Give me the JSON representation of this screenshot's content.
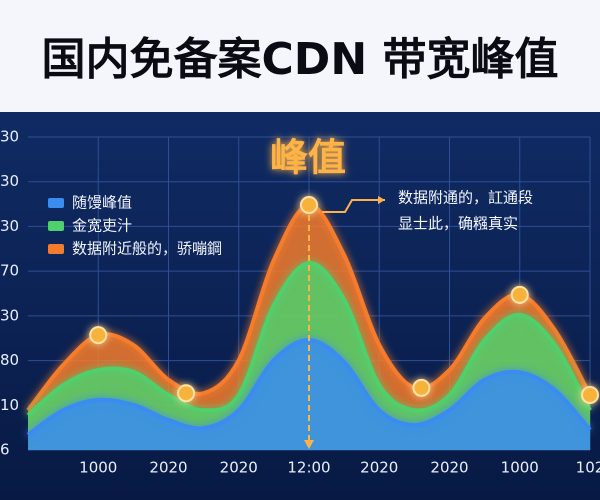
{
  "chart_data": {
    "type": "area",
    "title": "国内免备案CDN 带宽峰值",
    "annotation": "峰值",
    "note": [
      "数据附通的，訌通段",
      "显士此，确糨真实"
    ],
    "x": [
      -1,
      -0.5,
      0,
      0.5,
      1,
      1.5,
      2,
      2.5,
      3,
      3.5,
      4,
      4.5,
      5,
      5.5,
      6,
      6.5,
      7
    ],
    "xlim": [
      -1,
      7
    ],
    "xticks": [
      {
        "value": 0,
        "label": "1000"
      },
      {
        "value": 1,
        "label": "2020"
      },
      {
        "value": 2,
        "label": "2020"
      },
      {
        "value": 3,
        "label": "12:00"
      },
      {
        "value": 4,
        "label": "2020"
      },
      {
        "value": 5,
        "label": "2020"
      },
      {
        "value": 6,
        "label": "1000"
      },
      {
        "value": 7,
        "label": "102"
      }
    ],
    "ylim": [
      0,
      7
    ],
    "yticks": [
      {
        "value": 0,
        "label": "6"
      },
      {
        "value": 1,
        "label": "10"
      },
      {
        "value": 2,
        "label": "80"
      },
      {
        "value": 3,
        "label": "30"
      },
      {
        "value": 4,
        "label": "70"
      },
      {
        "value": 5,
        "label": "30"
      },
      {
        "value": 6,
        "label": "30"
      },
      {
        "value": 7,
        "label": "30"
      }
    ],
    "grid": true,
    "series": [
      {
        "name": "数据附近般的，骄嘣鋼",
        "color": "#f57b2c",
        "values": [
          0.89,
          1.9,
          2.57,
          2.35,
          1.57,
          1.27,
          2.01,
          4.25,
          5.48,
          4.36,
          2.35,
          1.39,
          1.79,
          2.95,
          3.47,
          2.68,
          1.23
        ]
      },
      {
        "name": "金宽吏汁",
        "color": "#4fd06c",
        "values": [
          0.78,
          1.45,
          1.79,
          1.75,
          1.23,
          0.89,
          1.23,
          3.24,
          4.18,
          3.36,
          1.45,
          0.89,
          1.23,
          2.46,
          3.02,
          2.35,
          0.89
        ]
      },
      {
        "name": "随馒峰值",
        "color": "#3a8cf0",
        "values": [
          0.34,
          0.89,
          1.12,
          1.01,
          0.67,
          0.49,
          0.89,
          2.01,
          2.46,
          1.97,
          0.89,
          0.56,
          0.89,
          1.57,
          1.74,
          1.34,
          0.45
        ]
      }
    ],
    "markers": {
      "x": [
        0,
        1.25,
        3,
        4.6,
        6,
        7
      ],
      "values": [
        2.57,
        1.27,
        5.48,
        1.39,
        3.47,
        1.23
      ],
      "color": "#f7b23a"
    }
  }
}
